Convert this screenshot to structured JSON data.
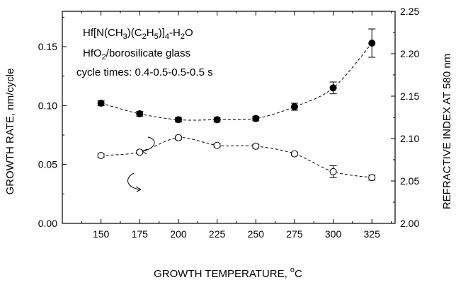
{
  "chart_data": {
    "type": "scatter",
    "xlabel": "GROWTH TEMPERATURE, °C",
    "ylabel_left": "GROWTH RATE, nm/cycle",
    "ylabel_right": "REFRACTIVE INDEX AT 580 nm",
    "xlim": [
      125,
      340
    ],
    "ylim_left": [
      0,
      0.18
    ],
    "ylim_right": [
      2.0,
      2.25
    ],
    "x_ticks": [
      150,
      175,
      200,
      225,
      250,
      275,
      300,
      325
    ],
    "y_ticks_left": [
      0.0,
      0.05,
      0.1,
      0.15
    ],
    "y_ticks_right": [
      2.0,
      2.05,
      2.1,
      2.15,
      2.2,
      2.25
    ],
    "grid": false,
    "annotations": {
      "precursor": "Hf[N(CH3)(C2H5)]4-H2O",
      "film": "HfO2/borosilicate glass",
      "cycle": "cycle times: 0.4-0.5-0.5-0.5 s"
    },
    "series": [
      {
        "axis": "left",
        "marker": "filled-circle",
        "x": [
          150,
          175,
          200,
          225,
          250,
          275,
          300,
          325
        ],
        "y": [
          0.102,
          0.093,
          0.088,
          0.088,
          0.089,
          0.099,
          0.115,
          0.153
        ],
        "err": [
          0.002,
          0.002,
          0.002,
          0.002,
          0.002,
          0.003,
          0.005,
          0.012
        ]
      },
      {
        "axis": "right",
        "marker": "open-circle",
        "x": [
          150,
          175,
          200,
          225,
          250,
          275,
          300,
          325
        ],
        "y": [
          2.08,
          2.084,
          2.101,
          2.092,
          2.091,
          2.082,
          2.061,
          2.054
        ],
        "err": [
          0.002,
          0.002,
          0.002,
          0.002,
          0.002,
          0.002,
          0.007,
          0.003
        ]
      }
    ]
  }
}
